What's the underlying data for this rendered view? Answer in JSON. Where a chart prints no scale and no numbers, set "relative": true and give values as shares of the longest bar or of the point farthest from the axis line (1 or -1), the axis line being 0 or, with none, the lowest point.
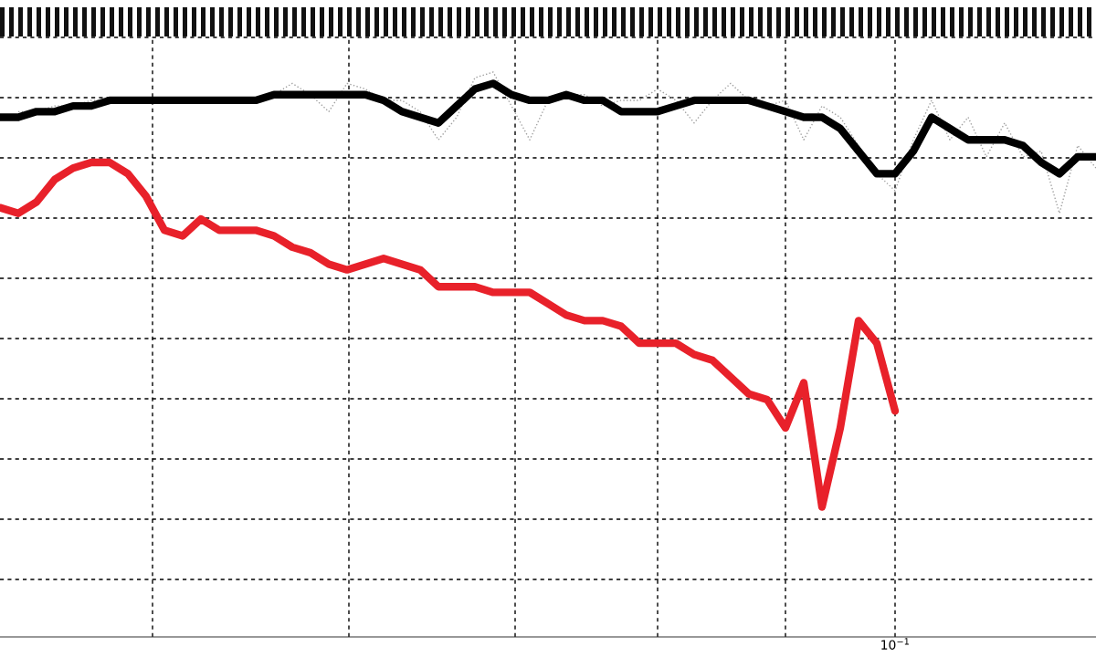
{
  "chart_data": {
    "type": "line",
    "relative": true,
    "grid": true,
    "line_style": "solid",
    "marker": "none",
    "annotations": [
      "10$^{−1}$"
    ],
    "categories": [
      null,
      null,
      null,
      null,
      null,
      null,
      null,
      null,
      null,
      null,
      null,
      null,
      null,
      null,
      null,
      null,
      null,
      null,
      null,
      null,
      null,
      null,
      null,
      null,
      null,
      null,
      null,
      null,
      null,
      null,
      null,
      null,
      null,
      null,
      null,
      null,
      null,
      null,
      null,
      null,
      null,
      null,
      null,
      null,
      null,
      null,
      null,
      null,
      null,
      null,
      null,
      null,
      null,
      null,
      null,
      null,
      null,
      null,
      null,
      null,
      null
    ],
    "series": [
      {
        "color": "#a0a0a0",
        "line_style": "dotted",
        "values": [
          null,
          0.93,
          0.93,
          0.94,
          0.94,
          0.95,
          0.95,
          0.95,
          0.95,
          0.95,
          0.95,
          0.95,
          0.95,
          0.95,
          0.95,
          0.96,
          0.98,
          0.96,
          0.93,
          0.98,
          0.97,
          0.95,
          0.95,
          0.93,
          0.88,
          0.92,
          0.99,
          1.0,
          0.94,
          0.88,
          0.95,
          0.96,
          0.96,
          0.94,
          0.95,
          0.95,
          0.97,
          0.95,
          0.91,
          0.95,
          0.98,
          0.95,
          0.94,
          0.95,
          0.88,
          0.94,
          0.92,
          0.87,
          0.82,
          0.79,
          0.88,
          0.95,
          0.88,
          0.92,
          0.85,
          0.91,
          0.85,
          0.86,
          0.75,
          0.87,
          0.83
        ]
      },
      {
        "color": "#000000",
        "values": [
          0.92,
          0.92,
          0.93,
          0.93,
          0.94,
          0.94,
          0.95,
          0.95,
          0.95,
          0.95,
          0.95,
          0.95,
          0.95,
          0.95,
          0.95,
          0.96,
          0.96,
          0.96,
          0.96,
          0.96,
          0.96,
          0.95,
          0.93,
          0.92,
          0.91,
          0.94,
          0.97,
          0.98,
          0.96,
          0.95,
          0.95,
          0.96,
          0.95,
          0.95,
          0.93,
          0.93,
          0.93,
          0.94,
          0.95,
          0.95,
          0.95,
          0.95,
          0.94,
          0.93,
          0.92,
          0.92,
          0.9,
          0.86,
          0.82,
          0.82,
          0.86,
          0.92,
          0.9,
          0.88,
          0.88,
          0.88,
          0.87,
          0.84,
          0.82,
          0.85,
          0.85
        ]
      },
      {
        "color": "#e8212a",
        "values": [
          0.76,
          0.75,
          0.77,
          0.81,
          0.83,
          0.84,
          0.84,
          0.82,
          0.78,
          0.72,
          0.71,
          0.74,
          0.72,
          0.72,
          0.72,
          0.71,
          0.69,
          0.68,
          0.66,
          0.65,
          0.66,
          0.67,
          0.66,
          0.65,
          0.62,
          0.62,
          0.62,
          0.61,
          0.61,
          0.61,
          0.59,
          0.57,
          0.56,
          0.56,
          0.55,
          0.52,
          0.52,
          0.52,
          0.5,
          0.49,
          0.46,
          0.43,
          0.42,
          0.37,
          0.45,
          0.23,
          0.37,
          0.56,
          0.52,
          0.4,
          null,
          null,
          null,
          null,
          null,
          null,
          null,
          null,
          null,
          null,
          null
        ]
      }
    ]
  }
}
